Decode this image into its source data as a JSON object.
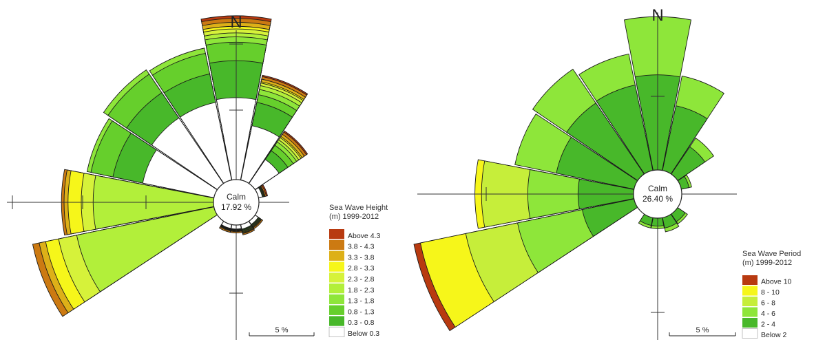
{
  "chart_data": [
    {
      "type": "windrose",
      "north_label": "N",
      "calm_label": "Calm",
      "calm_value": "17.92 %",
      "legend_title": [
        "Sea Wave Height",
        "(m) 1999-2012"
      ],
      "scale_label": "5 %",
      "bins": [
        {
          "label": "Above 4.3",
          "color": "#b83a10"
        },
        {
          "label": "3.8 - 4.3",
          "color": "#cc7a12"
        },
        {
          "label": "3.3 - 3.8",
          "color": "#ddb018"
        },
        {
          "label": "2.8 - 3.3",
          "color": "#f6f61a"
        },
        {
          "label": "2.3 - 2.8",
          "color": "#d6f23a"
        },
        {
          "label": "1.8 - 2.3",
          "color": "#b2ef3a"
        },
        {
          "label": "1.3 - 1.8",
          "color": "#8ee63a"
        },
        {
          "label": "0.8 - 1.3",
          "color": "#66cf2c"
        },
        {
          "label": "0.3 - 0.8",
          "color": "#48b82a"
        },
        {
          "label": "Below 0.3",
          "color": "#ffffff"
        }
      ],
      "directions": [
        "N",
        "NNE",
        "NE",
        "ENE",
        "E",
        "ESE",
        "SE",
        "SSE",
        "S",
        "SSW",
        "SW",
        "WSW",
        "W",
        "WNW",
        "NW",
        "NNW"
      ],
      "cumulative_percent": [
        [
          0,
          0,
          0,
          0,
          0,
          0,
          0,
          0,
          0,
          0,
          0,
          0,
          0,
          0,
          0,
          0
        ],
        [
          0,
          0,
          0,
          0,
          0,
          0,
          0,
          0,
          0,
          0,
          0,
          0,
          0,
          0,
          0,
          0
        ],
        [
          0,
          0,
          0,
          0,
          0,
          0,
          0,
          0,
          0,
          0,
          0,
          0,
          0,
          0,
          0,
          0
        ],
        [
          0,
          0,
          0,
          0,
          0,
          0,
          0,
          0,
          0,
          0,
          0,
          0,
          0,
          0,
          0,
          0
        ],
        [
          0,
          0,
          0,
          0,
          0,
          0,
          0,
          0,
          0,
          0,
          0,
          9.8,
          0,
          0,
          0,
          0
        ],
        [
          0,
          0,
          0,
          0,
          0,
          0,
          0,
          0,
          0,
          0,
          0,
          8.3,
          6.8,
          0,
          0,
          0
        ],
        [
          0,
          0,
          0,
          0,
          0,
          0,
          0,
          0,
          0,
          0,
          0,
          6.8,
          5.8,
          0,
          0,
          0
        ],
        [
          0,
          0,
          0,
          0,
          0,
          0,
          0,
          0,
          0,
          0,
          0,
          5.3,
          4.3,
          0,
          0,
          0
        ],
        [
          9.0,
          3.0,
          0,
          0,
          0,
          0,
          0,
          0,
          0,
          0,
          0,
          3.8,
          3.2,
          6.2,
          6.0,
          7.0
        ],
        [
          6.2,
          2.6,
          1.6,
          0.45,
          0.5,
          0.5,
          0.6,
          0.6,
          0.5,
          0.5,
          0.6,
          2.3,
          2.0,
          4.2,
          4.5,
          5.2
        ]
      ],
      "bands": [
        [
          12.4,
          8.1,
          4.8,
          0.7,
          0,
          0,
          0,
          0,
          0,
          0,
          0,
          0,
          0,
          0,
          0,
          0
        ],
        [
          12.2,
          8.0,
          4.7,
          0.6,
          0,
          0,
          0.7,
          0.8,
          0.6,
          0.6,
          0,
          14.0,
          11.5,
          0,
          0,
          0
        ],
        [
          11.9,
          7.8,
          4.5,
          0.5,
          0,
          0,
          0.6,
          0.7,
          0.5,
          0.5,
          0,
          13.5,
          11.3,
          0,
          0,
          0
        ],
        [
          11.6,
          7.6,
          4.3,
          0.5,
          0,
          0,
          0.55,
          0.65,
          0.45,
          0.45,
          0,
          13.0,
          11.0,
          0,
          0,
          0
        ],
        [
          11.4,
          7.5,
          4.2,
          0.45,
          0,
          0,
          0.5,
          0.6,
          0.42,
          0.42,
          0,
          12.0,
          10.0,
          0,
          0,
          0
        ],
        [
          11.1,
          7.3,
          4.0,
          0.45,
          0,
          0,
          0.5,
          0.55,
          0.4,
          0.4,
          0,
          10.6,
          9.1,
          0,
          0,
          0
        ],
        [
          10.8,
          7.0,
          3.8,
          0.4,
          0,
          0,
          0.45,
          0.5,
          0.38,
          0.38,
          0,
          0,
          0,
          9.8,
          10.4,
          10.2
        ],
        [
          10.4,
          6.6,
          3.5,
          0.4,
          0,
          0,
          0.4,
          0.45,
          0.35,
          0.35,
          0,
          0,
          0,
          9.5,
          10.0,
          9.8
        ],
        [
          9.0,
          6.0,
          3.0,
          0.35,
          0,
          0,
          0.35,
          0.4,
          0.32,
          0.32,
          0,
          0,
          0,
          7.8,
          8.3,
          8.2
        ],
        [
          6.2,
          4.2,
          2.2,
          0.3,
          0,
          0,
          0.3,
          0.35,
          0.3,
          0.3,
          0,
          0,
          0,
          5.5,
          6.0,
          6.0
        ]
      ]
    },
    {
      "type": "windrose",
      "north_label": "N",
      "calm_label": "Calm",
      "calm_value": "26.40 %",
      "legend_title": [
        "Sea Wave Period",
        "(m) 1999-2012"
      ],
      "scale_label": "5 %",
      "bins": [
        {
          "label": "Above 10",
          "color": "#b83a10"
        },
        {
          "label": "8 - 10",
          "color": "#f6f61a"
        },
        {
          "label": "6 - 8",
          "color": "#c6ee3a"
        },
        {
          "label": "4 - 6",
          "color": "#8ee63a"
        },
        {
          "label": "2 - 4",
          "color": "#48b82a"
        },
        {
          "label": "Below 2",
          "color": "#ffffff"
        }
      ],
      "directions": [
        "N",
        "NNE",
        "NE",
        "ENE",
        "E",
        "ESE",
        "SE",
        "SSE",
        "S",
        "SSW",
        "SW",
        "WSW",
        "W",
        "WNW",
        "NW",
        "NNW"
      ],
      "bands": [
        [
          0,
          0,
          0,
          0,
          0,
          0,
          0,
          0,
          0,
          0,
          0,
          17.0,
          0,
          0,
          0,
          0
        ],
        [
          0,
          0,
          0,
          0,
          0,
          0,
          0,
          0,
          0,
          0,
          0,
          16.5,
          12.0,
          0,
          0,
          0
        ],
        [
          0,
          0,
          0,
          0,
          0,
          0,
          0,
          0,
          0,
          0,
          0,
          13.0,
          11.5,
          0,
          0,
          0
        ],
        [
          11.6,
          7.3,
          3.3,
          0.8,
          0,
          0,
          0.9,
          1.1,
          0.8,
          0.8,
          0,
          9.0,
          8.0,
          9.2,
          9.6,
          9.0
        ],
        [
          7.2,
          5.0,
          2.5,
          0.6,
          0,
          0,
          0.7,
          0.8,
          0.6,
          0.6,
          0,
          4.0,
          4.2,
          6.0,
          6.5,
          6.6
        ],
        [
          0,
          0,
          0,
          0,
          0,
          0,
          0,
          0,
          0,
          0,
          0,
          0,
          0,
          0,
          0,
          0
        ]
      ]
    }
  ]
}
